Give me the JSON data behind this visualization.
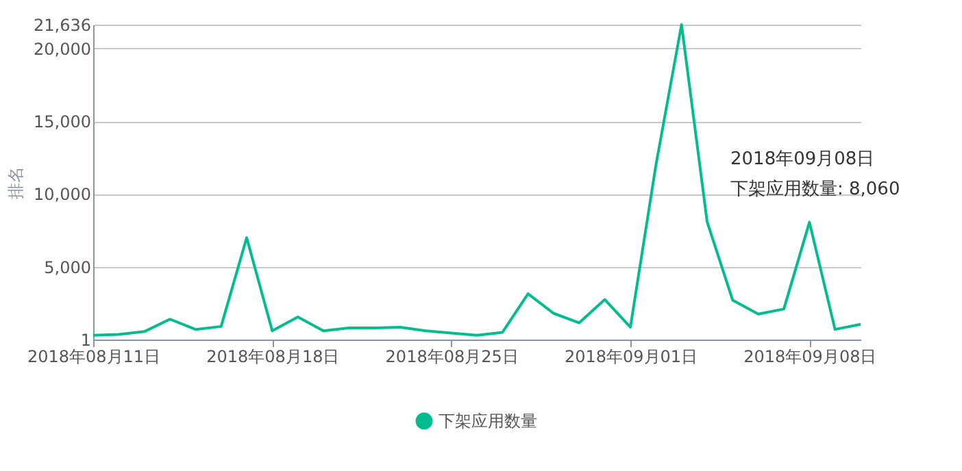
{
  "chart_data": {
    "type": "line",
    "ylabel": "排名",
    "x": [
      "2018-08-11",
      "2018-08-12",
      "2018-08-13",
      "2018-08-14",
      "2018-08-15",
      "2018-08-16",
      "2018-08-17",
      "2018-08-18",
      "2018-08-19",
      "2018-08-20",
      "2018-08-21",
      "2018-08-22",
      "2018-08-23",
      "2018-08-24",
      "2018-08-25",
      "2018-08-26",
      "2018-08-27",
      "2018-08-28",
      "2018-08-29",
      "2018-08-30",
      "2018-08-31",
      "2018-09-01",
      "2018-09-02",
      "2018-09-03",
      "2018-09-04",
      "2018-09-05",
      "2018-09-06",
      "2018-09-07",
      "2018-09-08",
      "2018-09-09",
      "2018-09-10"
    ],
    "series": [
      {
        "name": "下架应用数量",
        "color": "#00bc8f",
        "values": [
          300,
          350,
          550,
          1400,
          700,
          900,
          7000,
          600,
          1550,
          600,
          800,
          800,
          850,
          600,
          450,
          300,
          500,
          3150,
          1800,
          1150,
          2750,
          850,
          12000,
          21636,
          8100,
          2700,
          1750,
          2100,
          8060,
          700,
          1050
        ]
      }
    ],
    "xlim": [
      "2018-08-11",
      "2018-09-10"
    ],
    "xticks": [
      {
        "value": "2018-08-11",
        "label": "2018年08月11日"
      },
      {
        "value": "2018-08-18",
        "label": "2018年08月18日"
      },
      {
        "value": "2018-08-25",
        "label": "2018年08月25日"
      },
      {
        "value": "2018-09-01",
        "label": "2018年09月01日"
      },
      {
        "value": "2018-09-08",
        "label": "2018年09月08日"
      }
    ],
    "ylim": [
      1,
      21636
    ],
    "yticks": [
      1,
      {
        "value": 5000,
        "label": "5,000"
      },
      {
        "value": 10000,
        "label": "10,000"
      },
      {
        "value": 15000,
        "label": "15,000"
      },
      {
        "value": 20000,
        "label": "20,000"
      },
      {
        "value": 21636,
        "label": "21,636"
      }
    ],
    "grid": "y",
    "legend": "bottom",
    "marker": "none",
    "line_style": "solid",
    "annotations": [
      "2018年09月08日",
      "下架应用数量: 8,060"
    ]
  }
}
